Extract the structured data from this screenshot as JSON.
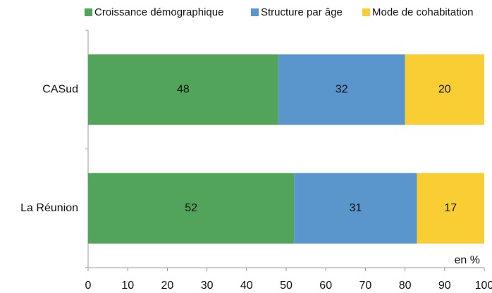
{
  "chart_data": {
    "type": "bar",
    "orientation": "horizontal",
    "stacked": true,
    "categories": [
      "CASud",
      "La Réunion"
    ],
    "series": [
      {
        "name": "Croissance démographique",
        "color": "#52a45a",
        "values": [
          48,
          52
        ]
      },
      {
        "name": "Structure par âge",
        "color": "#5a96cc",
        "values": [
          32,
          31
        ]
      },
      {
        "name": "Mode de cohabitation",
        "color": "#f8ce34",
        "values": [
          20,
          17
        ]
      }
    ],
    "xlim": [
      0,
      100
    ],
    "xticks": [
      0,
      10,
      20,
      30,
      40,
      50,
      60,
      70,
      80,
      90,
      100
    ],
    "annotation": "en %",
    "legend": "top"
  }
}
